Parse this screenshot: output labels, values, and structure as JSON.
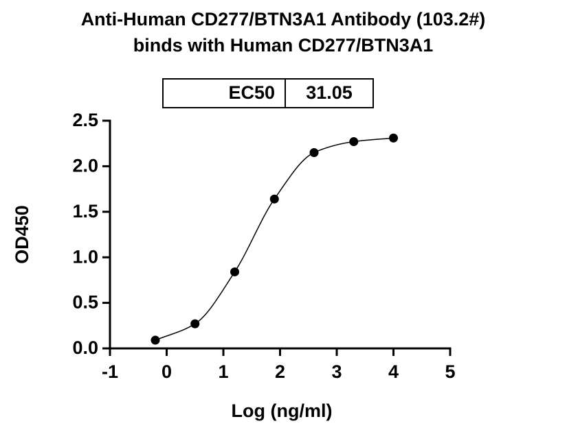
{
  "chart_data": {
    "type": "scatter",
    "title": [
      "Anti-Human CD277/BTN3A1 Antibody (103.2#)",
      "binds with Human CD277/BTN3A1"
    ],
    "x_label": "Log (ng/ml)",
    "y_label": "OD450",
    "ec50_label": "EC50",
    "ec50": 31.05,
    "series": [
      {
        "name": "OD450",
        "color": "#000000",
        "x": [
          -0.2,
          0.5,
          1.2,
          1.9,
          2.6,
          3.3,
          4.0
        ],
        "values": [
          0.09,
          0.27,
          0.84,
          1.64,
          2.15,
          2.27,
          2.31
        ]
      }
    ],
    "xlim": [
      -1,
      5
    ],
    "xticks": [
      -1,
      0,
      1,
      2,
      3,
      4,
      5
    ],
    "ylim": [
      0,
      2.5
    ],
    "yticks": [
      {
        "value": 0,
        "label": "0.0"
      },
      0.5,
      {
        "value": 1,
        "label": "1.0"
      },
      1.5,
      {
        "value": 2,
        "label": "2.0"
      },
      2.5
    ]
  }
}
